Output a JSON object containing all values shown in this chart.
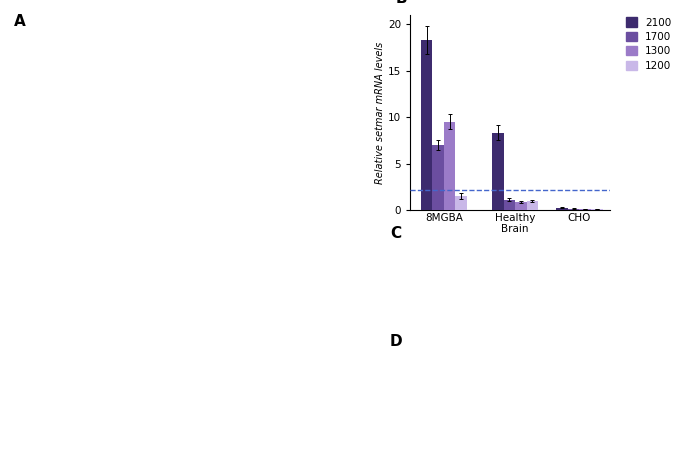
{
  "title": "B",
  "ylabel": "Relative setmar mRNA levels",
  "groups": [
    "8MGBA",
    "Healthy\nBrain",
    "CHO"
  ],
  "series_labels": [
    "2100",
    "1700",
    "1300",
    "1200"
  ],
  "colors": [
    "#3d2b6e",
    "#6b4ea0",
    "#9b7bc8",
    "#c9b8e8"
  ],
  "bar_values": [
    [
      18.3,
      7.0,
      9.5,
      1.5
    ],
    [
      8.3,
      1.1,
      0.9,
      1.0
    ],
    [
      0.25,
      0.15,
      0.12,
      0.08
    ]
  ],
  "bar_errors": [
    [
      1.5,
      0.5,
      0.8,
      0.3
    ],
    [
      0.8,
      0.15,
      0.1,
      0.1
    ],
    [
      0.04,
      0.04,
      0.03,
      0.02
    ]
  ],
  "ylim": [
    0,
    21
  ],
  "yticks": [
    0,
    5,
    10,
    15,
    20
  ],
  "dashed_line_y": 2.2,
  "bar_width": 0.17,
  "figsize": [
    7.0,
    4.51
  ],
  "dpi": 100,
  "panel_A_label": "A",
  "panel_B_label": "B",
  "panel_C_label": "C",
  "panel_D_label": "D"
}
